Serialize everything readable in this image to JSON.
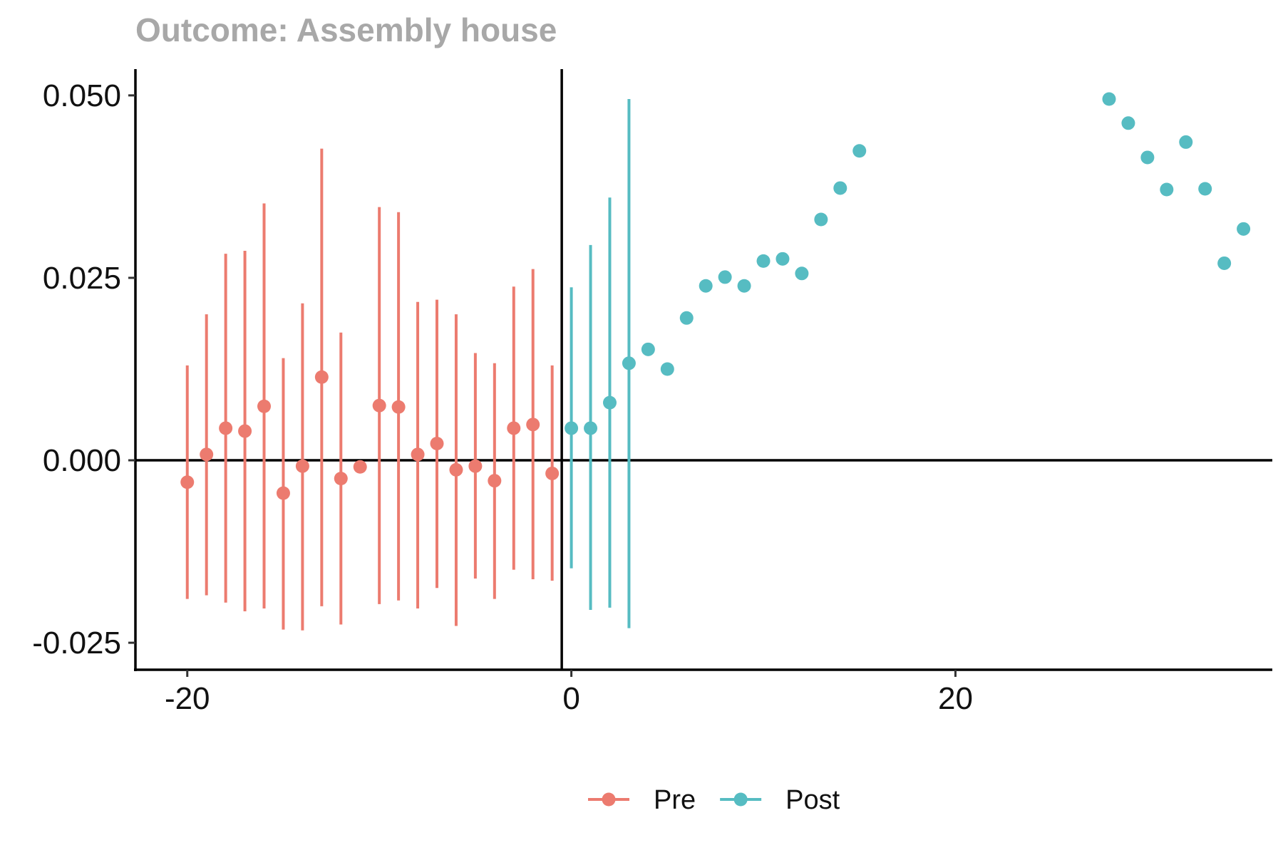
{
  "chart_data": {
    "type": "scatter",
    "title": "Outcome: Assembly house",
    "xlabel": "",
    "ylabel": "",
    "xlim": [
      -22.7,
      36.5
    ],
    "ylim": [
      -0.0287,
      0.0536
    ],
    "x_ticks": [
      -20,
      0,
      20
    ],
    "x_tick_labels": [
      "-20",
      "0",
      "20"
    ],
    "y_ticks": [
      -0.025,
      0,
      0.025,
      0.05
    ],
    "y_tick_labels": [
      "-0.025",
      "0.000",
      "0.025",
      "0.050"
    ],
    "reference_lines": {
      "x": -0.5,
      "y": 0
    },
    "grid": false,
    "legend": {
      "position": "bottom",
      "entries": [
        "Pre",
        "Post"
      ]
    },
    "colors": {
      "Pre": "#ec7b6f",
      "Post": "#56bcc2"
    },
    "series": [
      {
        "name": "Pre",
        "points": [
          {
            "x": -20,
            "y": -0.003,
            "lo": -0.019,
            "hi": 0.013
          },
          {
            "x": -19,
            "y": 0.0008,
            "lo": -0.0185,
            "hi": 0.02
          },
          {
            "x": -18,
            "y": 0.0044,
            "lo": -0.0195,
            "hi": 0.0283
          },
          {
            "x": -17,
            "y": 0.004,
            "lo": -0.0207,
            "hi": 0.0287
          },
          {
            "x": -16,
            "y": 0.0074,
            "lo": -0.0203,
            "hi": 0.0352
          },
          {
            "x": -15,
            "y": -0.0045,
            "lo": -0.0232,
            "hi": 0.014
          },
          {
            "x": -14,
            "y": -0.0008,
            "lo": -0.0233,
            "hi": 0.0215
          },
          {
            "x": -13,
            "y": 0.0114,
            "lo": -0.02,
            "hi": 0.0427
          },
          {
            "x": -12,
            "y": -0.0025,
            "lo": -0.0225,
            "hi": 0.0175
          },
          {
            "x": -11,
            "y": -0.0009,
            "lo": null,
            "hi": null
          },
          {
            "x": -10,
            "y": 0.0075,
            "lo": -0.0197,
            "hi": 0.0347
          },
          {
            "x": -9,
            "y": 0.0073,
            "lo": -0.0192,
            "hi": 0.034
          },
          {
            "x": -8,
            "y": 0.0008,
            "lo": -0.0203,
            "hi": 0.0217
          },
          {
            "x": -7,
            "y": 0.0023,
            "lo": -0.0175,
            "hi": 0.022
          },
          {
            "x": -6,
            "y": -0.0013,
            "lo": -0.0227,
            "hi": 0.02
          },
          {
            "x": -5,
            "y": -0.0008,
            "lo": -0.0162,
            "hi": 0.0147
          },
          {
            "x": -4,
            "y": -0.0028,
            "lo": -0.019,
            "hi": 0.0133
          },
          {
            "x": -3,
            "y": 0.0044,
            "lo": -0.015,
            "hi": 0.0238
          },
          {
            "x": -2,
            "y": 0.0049,
            "lo": -0.0163,
            "hi": 0.0262
          },
          {
            "x": -1,
            "y": -0.0018,
            "lo": -0.0165,
            "hi": 0.013
          }
        ]
      },
      {
        "name": "Post",
        "points": [
          {
            "x": 0,
            "y": 0.0044,
            "lo": -0.0148,
            "hi": 0.0237
          },
          {
            "x": 1,
            "y": 0.0044,
            "lo": -0.0205,
            "hi": 0.0295
          },
          {
            "x": 2,
            "y": 0.0079,
            "lo": -0.0202,
            "hi": 0.036
          },
          {
            "x": 3,
            "y": 0.0133,
            "lo": -0.023,
            "hi": 0.0495
          },
          {
            "x": 4,
            "y": 0.0152,
            "lo": null,
            "hi": null
          },
          {
            "x": 5,
            "y": 0.0125,
            "lo": null,
            "hi": null
          },
          {
            "x": 6,
            "y": 0.0195,
            "lo": null,
            "hi": null
          },
          {
            "x": 7,
            "y": 0.0239,
            "lo": null,
            "hi": null
          },
          {
            "x": 8,
            "y": 0.0251,
            "lo": null,
            "hi": null
          },
          {
            "x": 9,
            "y": 0.0239,
            "lo": null,
            "hi": null
          },
          {
            "x": 10,
            "y": 0.0273,
            "lo": null,
            "hi": null
          },
          {
            "x": 11,
            "y": 0.0276,
            "lo": null,
            "hi": null
          },
          {
            "x": 12,
            "y": 0.0256,
            "lo": null,
            "hi": null
          },
          {
            "x": 13,
            "y": 0.033,
            "lo": null,
            "hi": null
          },
          {
            "x": 14,
            "y": 0.0373,
            "lo": null,
            "hi": null
          },
          {
            "x": 15,
            "y": 0.0424,
            "lo": null,
            "hi": null
          },
          {
            "x": 28,
            "y": 0.0495,
            "lo": null,
            "hi": null
          },
          {
            "x": 29,
            "y": 0.0462,
            "lo": null,
            "hi": null
          },
          {
            "x": 30,
            "y": 0.0415,
            "lo": null,
            "hi": null
          },
          {
            "x": 31,
            "y": 0.0371,
            "lo": null,
            "hi": null
          },
          {
            "x": 32,
            "y": 0.0436,
            "lo": null,
            "hi": null
          },
          {
            "x": 33,
            "y": 0.0372,
            "lo": null,
            "hi": null
          },
          {
            "x": 34,
            "y": 0.027,
            "lo": null,
            "hi": null
          },
          {
            "x": 35,
            "y": 0.0317,
            "lo": null,
            "hi": null
          }
        ]
      }
    ]
  }
}
